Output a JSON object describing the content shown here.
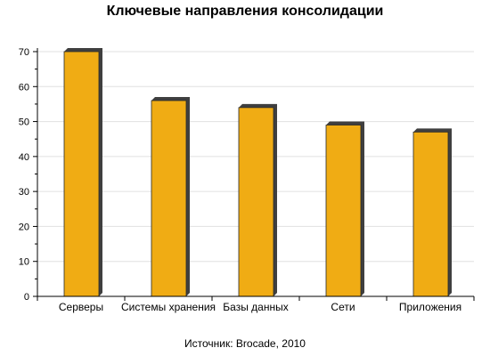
{
  "chart_data": {
    "type": "bar",
    "title": "Ключевые направления консолидации",
    "source": "Источник: Brocade, 2010",
    "categories": [
      "Серверы",
      "Системы хранения",
      "Базы данных",
      "Сети",
      "Приложения"
    ],
    "values": [
      70,
      56,
      54,
      49,
      47
    ],
    "ylim": [
      0,
      70
    ],
    "yticks": [
      0,
      10,
      20,
      30,
      40,
      50,
      60,
      70
    ],
    "grid": true,
    "legend": "none",
    "colors": {
      "bar": "#F0AC14",
      "bar_shadow": "#3F3F3F",
      "grid": "#E0E0E0",
      "axis": "#000000"
    }
  }
}
